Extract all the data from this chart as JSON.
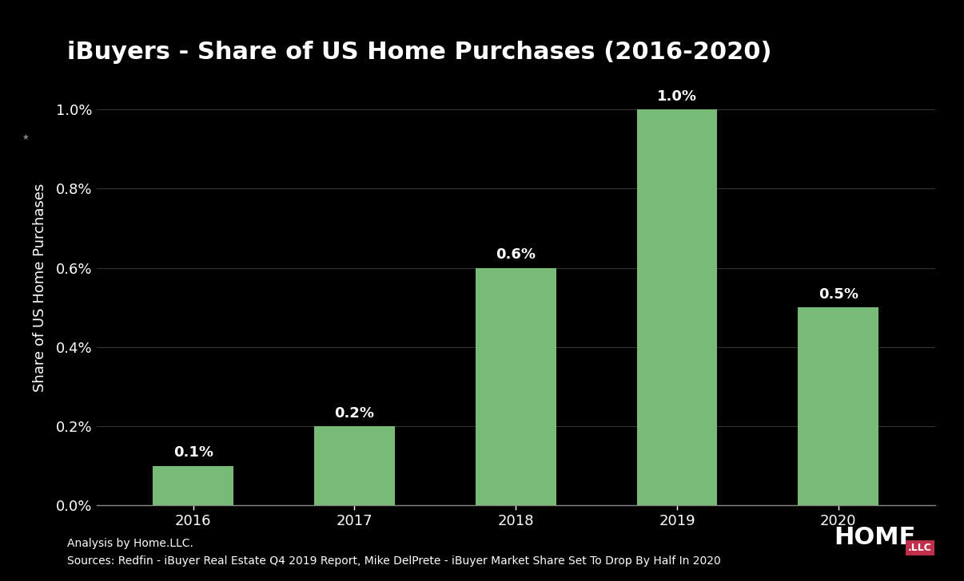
{
  "title": "iBuyers - Share of US Home Purchases (2016-2020)",
  "categories": [
    "2016",
    "2017",
    "2018",
    "2019",
    "2020"
  ],
  "values": [
    0.001,
    0.002,
    0.006,
    0.01,
    0.005
  ],
  "bar_color": "#77bb77",
  "background_color": "#000000",
  "text_color": "#ffffff",
  "ylabel": "Share of US Home Purchases",
  "ylim": [
    0,
    0.011
  ],
  "yticks": [
    0.0,
    0.002,
    0.004,
    0.006,
    0.008,
    0.01
  ],
  "ytick_labels": [
    "0.0%",
    "0.2%",
    "0.4%",
    "0.6%",
    "0.8%",
    "1.0%"
  ],
  "bar_labels": [
    "0.1%",
    "0.2%",
    "0.6%",
    "1.0%",
    "0.5%"
  ],
  "footnote_line1": "Analysis by Home.LLC.",
  "footnote_line2": "Sources: Redfin - iBuyer Real Estate Q4 2019 Report, Mike DelPrete - iBuyer Market Share Set To Drop By Half In 2020",
  "home_text": "HOME",
  "llc_text": ".LLC",
  "llc_bg_color": "#c0304a",
  "title_fontsize": 22,
  "axis_label_fontsize": 13,
  "tick_fontsize": 13,
  "bar_label_fontsize": 13,
  "footnote_fontsize": 10,
  "home_fontsize": 22,
  "grid_color": "#333333",
  "spine_color": "#888888"
}
